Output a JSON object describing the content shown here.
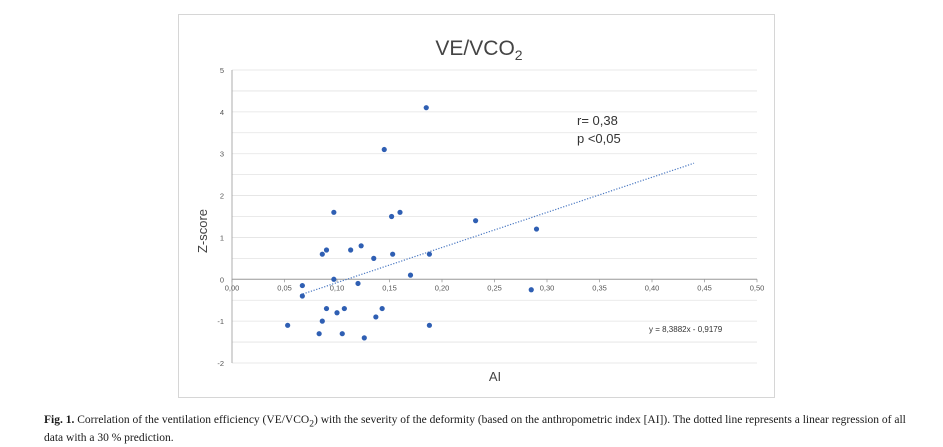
{
  "chart_data": {
    "type": "scatter",
    "title": "VE/VCO",
    "title_subscript": "2",
    "xlabel": "AI",
    "ylabel": "Z-score",
    "xlim": [
      0,
      0.5
    ],
    "ylim": [
      -2,
      5
    ],
    "xticks": [
      "0,00",
      "0,05",
      "0,10",
      "0,15",
      "0,20",
      "0,25",
      "0,30",
      "0,35",
      "0,40",
      "0,45",
      "0,50"
    ],
    "yticks": [
      "-2",
      "-1",
      "0",
      "1",
      "2",
      "3",
      "4",
      "5"
    ],
    "grid": true,
    "points": [
      {
        "x": 0.053,
        "y": -1.1
      },
      {
        "x": 0.067,
        "y": -0.15
      },
      {
        "x": 0.067,
        "y": -0.4
      },
      {
        "x": 0.083,
        "y": -1.3
      },
      {
        "x": 0.086,
        "y": -1.0
      },
      {
        "x": 0.086,
        "y": 0.6
      },
      {
        "x": 0.09,
        "y": 0.7
      },
      {
        "x": 0.09,
        "y": -0.7
      },
      {
        "x": 0.097,
        "y": 0.0
      },
      {
        "x": 0.097,
        "y": 1.6
      },
      {
        "x": 0.1,
        "y": -0.8
      },
      {
        "x": 0.105,
        "y": -1.3
      },
      {
        "x": 0.107,
        "y": -0.7
      },
      {
        "x": 0.113,
        "y": 0.7
      },
      {
        "x": 0.12,
        "y": -0.1
      },
      {
        "x": 0.123,
        "y": 0.8
      },
      {
        "x": 0.126,
        "y": -1.4
      },
      {
        "x": 0.135,
        "y": 0.5
      },
      {
        "x": 0.137,
        "y": -0.9
      },
      {
        "x": 0.143,
        "y": -0.7
      },
      {
        "x": 0.145,
        "y": 3.1
      },
      {
        "x": 0.152,
        "y": 1.5
      },
      {
        "x": 0.153,
        "y": 0.6
      },
      {
        "x": 0.16,
        "y": 1.6
      },
      {
        "x": 0.17,
        "y": 0.1
      },
      {
        "x": 0.185,
        "y": 4.1
      },
      {
        "x": 0.188,
        "y": 0.6
      },
      {
        "x": 0.188,
        "y": -1.1
      },
      {
        "x": 0.232,
        "y": 1.4
      },
      {
        "x": 0.285,
        "y": -0.25
      },
      {
        "x": 0.29,
        "y": 1.2
      }
    ],
    "trendline": {
      "slope": 8.3882,
      "intercept": -0.9179,
      "x_range": [
        0.065,
        0.44
      ],
      "style": "dotted"
    },
    "annotations": {
      "r": "r= 0,38",
      "p": "p <0,05",
      "equation": "y = 8,3882x - 0,9179"
    },
    "colors": {
      "points": "#2f5fb3",
      "trendline": "#4a78c2",
      "grid": "#e3e3e3",
      "axis": "#9a9a9a"
    }
  },
  "caption": {
    "label": "Fig. 1.",
    "text_before": "Correlation of the ventilation efficiency (VE/VCO",
    "sub": "2",
    "text_after": ") with the severity of the deformity (based on the anthropometric index [AI]). The dotted line represents a linear regression of all data with a 30 % prediction."
  }
}
